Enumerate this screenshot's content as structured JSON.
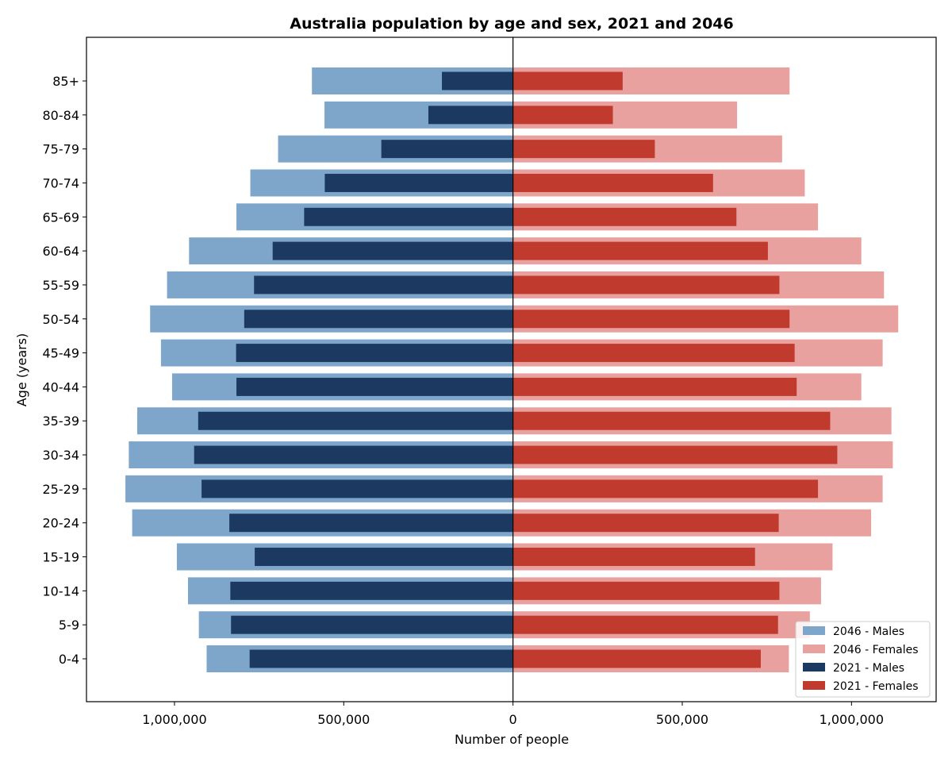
{
  "chart_data": {
    "type": "bar",
    "orientation": "horizontal",
    "title": "Australia population by age and sex, 2021 and 2046",
    "xlabel": "Number of people",
    "ylabel": "Age (years)",
    "xlim": [
      -1260000,
      1250000
    ],
    "x_ticks": [
      -1000000,
      -500000,
      0,
      500000,
      1000000
    ],
    "x_tick_labels": [
      "1,000,000",
      "500,000",
      "0",
      "500,000",
      "1,000,000"
    ],
    "categories": [
      "0-4",
      "5-9",
      "10-14",
      "15-19",
      "20-24",
      "25-29",
      "30-34",
      "35-39",
      "40-44",
      "45-49",
      "50-54",
      "55-59",
      "60-64",
      "65-69",
      "70-74",
      "75-79",
      "80-84",
      "85+"
    ],
    "legend_position": "lower-right",
    "series": [
      {
        "name": "2046 - Males",
        "color": "#7ea6cb",
        "values": [
          905000,
          928000,
          960000,
          993000,
          1125000,
          1145000,
          1135000,
          1110000,
          1007000,
          1040000,
          1072000,
          1022000,
          957000,
          817000,
          776000,
          694000,
          557000,
          594000
        ]
      },
      {
        "name": "2046 - Females",
        "color": "#e8a19e",
        "values": [
          815000,
          877000,
          910000,
          944000,
          1058000,
          1092000,
          1122000,
          1118000,
          1029000,
          1092000,
          1138000,
          1096000,
          1029000,
          901000,
          862000,
          795000,
          662000,
          817000
        ]
      },
      {
        "name": "2021 - Males",
        "color": "#1c3a61",
        "values": [
          778000,
          833000,
          835000,
          763000,
          838000,
          920000,
          942000,
          930000,
          817000,
          818000,
          794000,
          765000,
          710000,
          617000,
          556000,
          389000,
          250000,
          210000
        ]
      },
      {
        "name": "2021 - Females",
        "color": "#c13a2e",
        "values": [
          732000,
          783000,
          787000,
          715000,
          785000,
          901000,
          958000,
          937000,
          838000,
          832000,
          817000,
          787000,
          753000,
          660000,
          591000,
          419000,
          295000,
          324000
        ]
      }
    ]
  }
}
